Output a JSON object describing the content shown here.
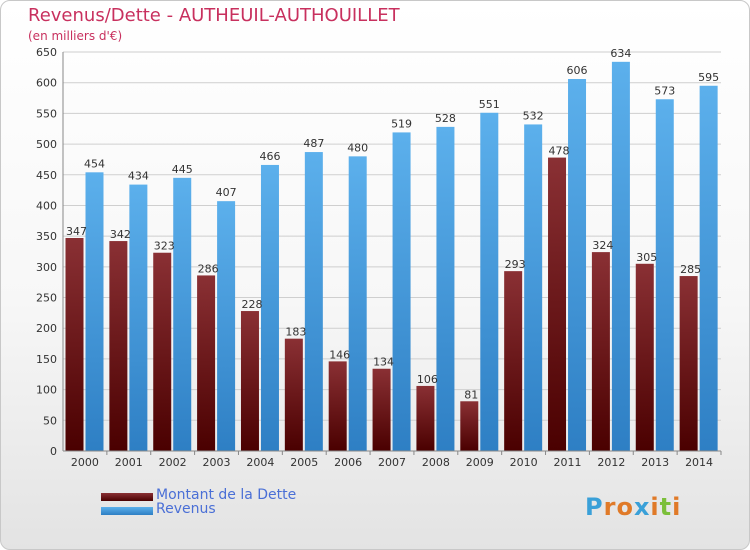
{
  "title": "Revenus/Dette - AUTHEUIL-AUTHOUILLET",
  "subtitle": "(en milliers d'€)",
  "logo": "Proxiti",
  "colors": {
    "dette": "#7a1f22",
    "revenus": "#4b9fe0",
    "title": "#c8305e",
    "legend_text": "#4a6fd6"
  },
  "chart_data": {
    "type": "bar",
    "categories": [
      "2000",
      "2001",
      "2002",
      "2003",
      "2004",
      "2005",
      "2006",
      "2007",
      "2008",
      "2009",
      "2010",
      "2011",
      "2012",
      "2013",
      "2014"
    ],
    "series": [
      {
        "name": "Montant de la Dette",
        "values": [
          347,
          342,
          323,
          286,
          228,
          183,
          146,
          134,
          106,
          81,
          293,
          478,
          324,
          305,
          285
        ]
      },
      {
        "name": "Revenus",
        "values": [
          454,
          434,
          445,
          407,
          466,
          487,
          480,
          519,
          528,
          551,
          532,
          606,
          634,
          573,
          595
        ]
      }
    ],
    "yticks": [
      0,
      50,
      100,
      150,
      200,
      250,
      300,
      350,
      400,
      450,
      500,
      550,
      600,
      650
    ],
    "ylim": [
      0,
      650
    ],
    "grid": true,
    "legend_position": "bottom-left"
  }
}
